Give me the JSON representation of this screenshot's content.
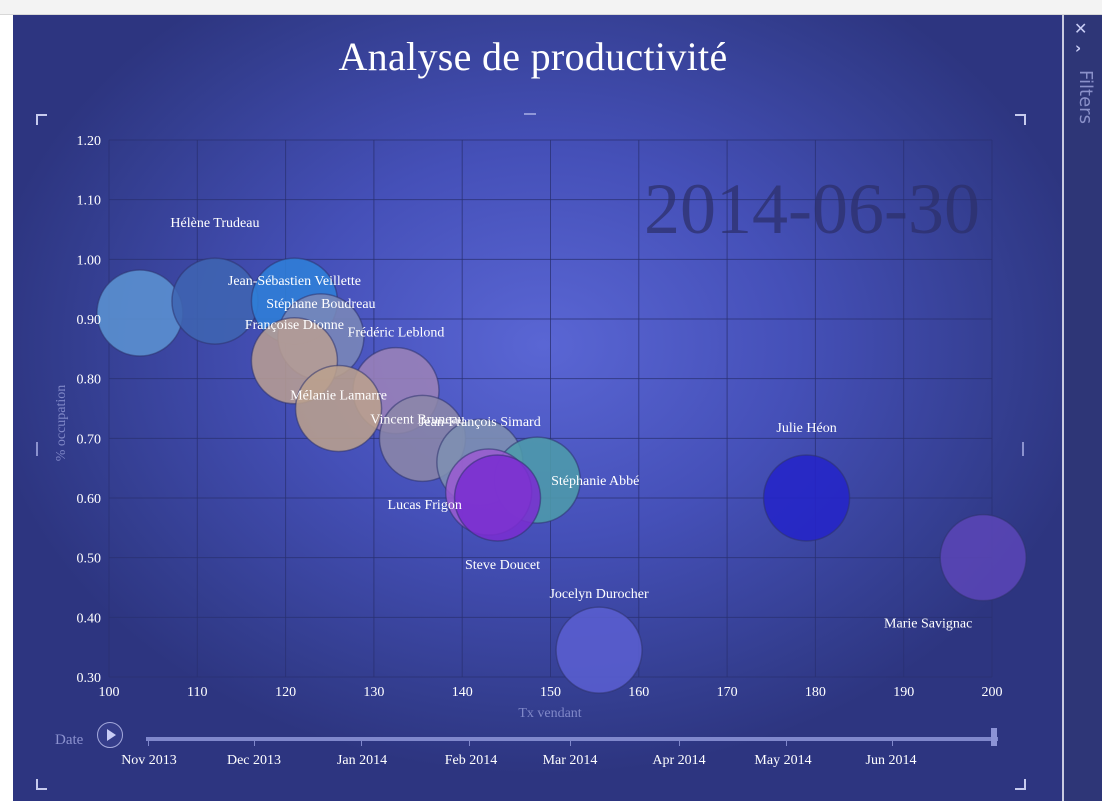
{
  "chart_data": {
    "type": "scatter",
    "subtype": "bubble",
    "title": "Analyse de productivité",
    "date_watermark": "2014-06-30",
    "xlabel": "Tx vendant",
    "ylabel": "% occupation",
    "xlim": [
      100,
      200
    ],
    "ylim": [
      0.3,
      1.2
    ],
    "x_ticks": [
      "100",
      "110",
      "120",
      "130",
      "140",
      "150",
      "160",
      "170",
      "180",
      "190",
      "200"
    ],
    "y_ticks": [
      "0.30",
      "0.40",
      "0.50",
      "0.60",
      "0.70",
      "0.80",
      "0.90",
      "1.00",
      "1.10",
      "1.20"
    ],
    "grid": true,
    "points": [
      {
        "name": "",
        "x": 103.5,
        "y": 0.91,
        "color": "#5b92d1"
      },
      {
        "name": "Hélène Trudeau",
        "x": 112,
        "y": 0.93,
        "color": "#3f64b2"
      },
      {
        "name": "Jean-Sébastien Veillette",
        "x": 121,
        "y": 0.93,
        "color": "#2f7fd8"
      },
      {
        "name": "Stéphane Boudreau",
        "x": 124,
        "y": 0.87,
        "color": "#7a88b8"
      },
      {
        "name": "Françoise Dionne",
        "x": 121,
        "y": 0.83,
        "color": "#b79d93"
      },
      {
        "name": "Frédéric Leblond",
        "x": 132.5,
        "y": 0.78,
        "color": "#9b82b8"
      },
      {
        "name": "Mélanie Lamarre",
        "x": 126,
        "y": 0.75,
        "color": "#bba08d"
      },
      {
        "name": "Vincent Bruneau",
        "x": 135.5,
        "y": 0.7,
        "color": "#8b86a8"
      },
      {
        "name": "Jean-François Simard",
        "x": 142,
        "y": 0.66,
        "color": "#7e8fb2"
      },
      {
        "name": "Stéphanie Abbé",
        "x": 148.5,
        "y": 0.63,
        "color": "#4d9bab"
      },
      {
        "name": "Lucas Frigon",
        "x": 143,
        "y": 0.61,
        "color": "#9a5bd0"
      },
      {
        "name": "Steve Doucet",
        "x": 144,
        "y": 0.6,
        "color": "#7a2ed0"
      },
      {
        "name": "Jocelyn Durocher",
        "x": 155.5,
        "y": 0.345,
        "color": "#5a5fd0"
      },
      {
        "name": "Julie Héon",
        "x": 179,
        "y": 0.6,
        "color": "#2424c8"
      },
      {
        "name": "Marie Savignac",
        "x": 199,
        "y": 0.5,
        "color": "#5a45b6"
      }
    ]
  },
  "timeline": {
    "label": "Date",
    "play_icon": "play-icon",
    "months": [
      "Nov 2013",
      "Dec 2013",
      "Jan 2014",
      "Feb 2014",
      "Mar 2014",
      "Apr 2014",
      "May 2014",
      "Jun 2014"
    ],
    "position": 1.0
  },
  "filters_panel": {
    "label": "Filters",
    "close_icon": "close-icon",
    "chevron_icon": "chevron-right-icon"
  }
}
